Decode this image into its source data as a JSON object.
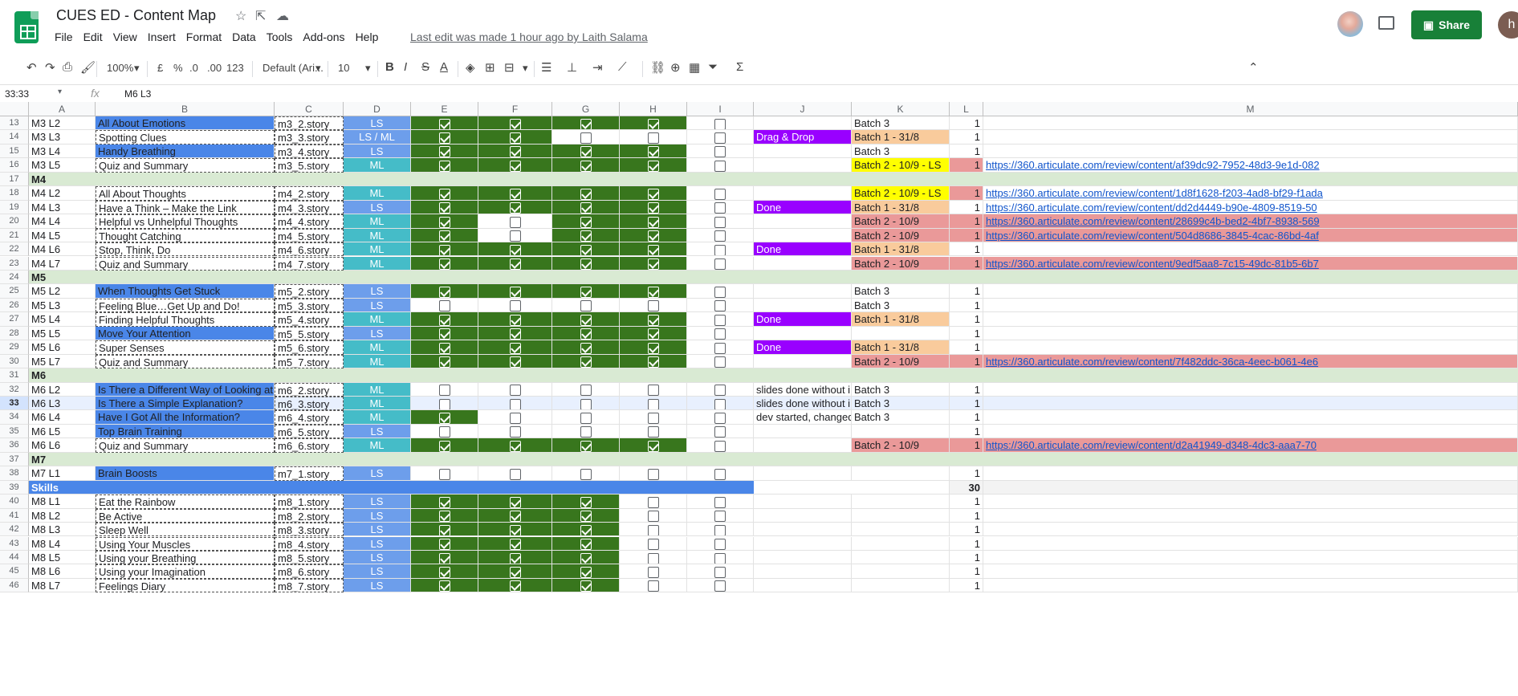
{
  "doc": {
    "title": "CUES ED - Content Map",
    "last_edit": "Last edit was made 1 hour ago by Laith Salama"
  },
  "menu": [
    "File",
    "Edit",
    "View",
    "Insert",
    "Format",
    "Data",
    "Tools",
    "Add-ons",
    "Help"
  ],
  "share_label": "Share",
  "user_initial": "h",
  "toolbar": {
    "zoom": "100%",
    "currency": "£",
    "percent": "%",
    "dec_less": ".0",
    "dec_more": ".00",
    "format": "123",
    "font": "Default (Ari...",
    "font_size": "10"
  },
  "formula": {
    "namebox": "33:33",
    "value": "M6 L3"
  },
  "columns": [
    "A",
    "B",
    "C",
    "D",
    "E",
    "F",
    "G",
    "H",
    "I",
    "J",
    "K",
    "L",
    "M"
  ],
  "colors": {
    "blue": "#4a86e8",
    "teal": "#45bcc8",
    "cornflower": "#6d9eeb",
    "green": "#38761d",
    "section": "#d9ead3",
    "purple": "#9900ff",
    "peach": "#f9cb9c",
    "yellow": "#ffff00",
    "red": "#ea9999",
    "white": "#ffffff",
    "header": "#f8f9fa"
  },
  "rows": [
    {
      "n": "13",
      "a": "M3 L2",
      "b": "All About Emotions",
      "c": "m3_2.story",
      "d": "LS",
      "k": "Batch 3",
      "l": "1"
    },
    {
      "n": "14",
      "a": "M3 L3",
      "b": "Spotting Clues",
      "c": "m3_3.story",
      "d": "LS / ML",
      "j": "Drag & Drop",
      "k": "Batch 1 - 31/8",
      "l": "1"
    },
    {
      "n": "15",
      "a": "M3 L4",
      "b": "Handy Breathing",
      "c": "m3_4.story",
      "d": "LS",
      "k": "Batch 3",
      "l": "1"
    },
    {
      "n": "16",
      "a": "M3 L5",
      "b": "Quiz and Summary",
      "c": "m3_5.story",
      "d": "ML",
      "k": "Batch 2 - 10/9 - LS",
      "l": "1",
      "m": "https://360.articulate.com/review/content/af39dc92-7952-48d3-9e1d-082"
    },
    {
      "n": "17",
      "a": "M4"
    },
    {
      "n": "18",
      "a": "M4 L2",
      "b": "All About Thoughts",
      "c": "m4_2.story",
      "d": "ML",
      "k": "Batch 2 - 10/9 - LS",
      "l": "1",
      "m": "https://360.articulate.com/review/content/1d8f1628-f203-4ad8-bf29-f1ada"
    },
    {
      "n": "19",
      "a": "M4 L3",
      "b": "Have a Think – Make the Link",
      "c": "m4_3.story",
      "d": "LS",
      "j": "Done",
      "k": "Batch 1 - 31/8",
      "l": "1",
      "m": "https://360.articulate.com/review/content/dd2d4449-b90e-4809-8519-50"
    },
    {
      "n": "20",
      "a": "M4 L4",
      "b": "Helpful vs Unhelpful Thoughts",
      "c": "m4_4.story",
      "d": "ML",
      "k": "Batch 2 - 10/9",
      "l": "1",
      "m": "https://360.articulate.com/review/content/28699c4b-bed2-4bf7-8938-569"
    },
    {
      "n": "21",
      "a": "M4 L5",
      "b": "Thought Catching",
      "c": "m4_5.story",
      "d": "ML",
      "k": "Batch 2 - 10/9",
      "l": "1",
      "m": "https://360.articulate.com/review/content/504d8686-3845-4cac-86bd-4af"
    },
    {
      "n": "22",
      "a": "M4 L6",
      "b": "Stop, Think, Do",
      "c": "m4_6.story",
      "d": "ML",
      "j": "Done",
      "k": "Batch 1 - 31/8",
      "l": "1"
    },
    {
      "n": "23",
      "a": "M4 L7",
      "b": "Quiz and Summary",
      "c": "m4_7.story",
      "d": "ML",
      "k": "Batch 2 - 10/9",
      "l": "1",
      "m": "https://360.articulate.com/review/content/9edf5aa8-7c15-49dc-81b5-6b7"
    },
    {
      "n": "24",
      "a": "M5"
    },
    {
      "n": "25",
      "a": "M5 L2",
      "b": "When Thoughts Get Stuck",
      "c": "m5_2.story",
      "d": "LS",
      "k": "Batch 3",
      "l": "1"
    },
    {
      "n": "26",
      "a": "M5 L3",
      "b": "Feeling Blue…Get Up and Do!",
      "c": "m5_3.story",
      "d": "LS",
      "k": "Batch 3",
      "l": "1"
    },
    {
      "n": "27",
      "a": "M5 L4",
      "b": "Finding Helpful Thoughts",
      "c": "m5_4.story",
      "d": "ML",
      "j": "Done",
      "k": "Batch 1 - 31/8",
      "l": "1"
    },
    {
      "n": "28",
      "a": "M5 L5",
      "b": "Move Your Attention",
      "c": "m5_5.story",
      "d": "LS",
      "l": "1"
    },
    {
      "n": "29",
      "a": "M5 L6",
      "b": "Super Senses",
      "c": "m5_6.story",
      "d": "ML",
      "j": "Done",
      "k": "Batch 1 - 31/8",
      "l": "1"
    },
    {
      "n": "30",
      "a": "M5 L7",
      "b": "Quiz and Summary",
      "c": "m5_7.story",
      "d": "ML",
      "k": "Batch 2 - 10/9",
      "l": "1",
      "m": "https://360.articulate.com/review/content/7f482ddc-36ca-4eec-b061-4e6"
    },
    {
      "n": "31",
      "a": "M6"
    },
    {
      "n": "32",
      "a": "M6 L2",
      "b": "Is There a Different Way of Looking at This?",
      "c": "m6_2.story",
      "d": "ML",
      "j": "slides done without intera",
      "k": "Batch 3",
      "l": "1"
    },
    {
      "n": "33",
      "a": "M6 L3",
      "b": "Is There a Simple Explanation?",
      "c": "m6_3.story",
      "d": "ML",
      "j": "slides done without intera",
      "k": "Batch 3",
      "l": "1"
    },
    {
      "n": "34",
      "a": "M6 L4",
      "b": "Have I Got All the Information?",
      "c": "m6_4.story",
      "d": "ML",
      "j": "dev started, changed to L",
      "k": "Batch 3",
      "l": "1"
    },
    {
      "n": "35",
      "a": "M6 L5",
      "b": "Top Brain Training",
      "c": "m6_5.story",
      "d": "LS",
      "l": "1"
    },
    {
      "n": "36",
      "a": "M6 L6",
      "b": "Quiz and Summary",
      "c": "m6_6.story",
      "d": "ML",
      "k": "Batch 2 - 10/9",
      "l": "1",
      "m": "https://360.articulate.com/review/content/d2a41949-d348-4dc3-aaa7-70"
    },
    {
      "n": "37",
      "a": "M7"
    },
    {
      "n": "38",
      "a": "M7 L1",
      "b": "Brain Boosts",
      "c": "m7_1.story",
      "d": "LS",
      "l": "1"
    },
    {
      "n": "39",
      "a": "Skills",
      "l": "30"
    },
    {
      "n": "40",
      "a": "M8 L1",
      "b": "Eat the Rainbow",
      "c": "m8_1.story",
      "d": "LS",
      "l": "1"
    },
    {
      "n": "41",
      "a": "M8 L2",
      "b": "Be Active",
      "c": "m8_2.story",
      "d": "LS",
      "l": "1"
    },
    {
      "n": "42",
      "a": "M8 L3",
      "b": "Sleep Well",
      "c": "m8_3.story",
      "d": "LS",
      "l": "1"
    },
    {
      "n": "43",
      "a": "M8 L4",
      "b": "Using Your Muscles",
      "c": "m8_4.story",
      "d": "LS",
      "l": "1"
    },
    {
      "n": "44",
      "a": "M8 L5",
      "b": "Using your Breathing",
      "c": "m8_5.story",
      "d": "LS",
      "l": "1"
    },
    {
      "n": "45",
      "a": "M8 L6",
      "b": "Using your Imagination",
      "c": "m8_6.story",
      "d": "LS",
      "l": "1"
    },
    {
      "n": "46",
      "a": "M8 L7",
      "b": "Feelings Diary",
      "c": "m8_7.story",
      "d": "LS",
      "l": "1"
    }
  ],
  "checks": {
    "13": [
      1,
      1,
      1,
      1,
      0
    ],
    "14": [
      1,
      1,
      0,
      0,
      0
    ],
    "15": [
      1,
      1,
      1,
      1,
      0
    ],
    "16": [
      1,
      1,
      1,
      1,
      0
    ],
    "18": [
      1,
      1,
      1,
      1,
      0
    ],
    "19": [
      1,
      1,
      1,
      1,
      0
    ],
    "20": [
      1,
      0,
      1,
      1,
      0
    ],
    "21": [
      1,
      0,
      1,
      1,
      0
    ],
    "22": [
      1,
      1,
      1,
      1,
      0
    ],
    "23": [
      1,
      1,
      1,
      1,
      0
    ],
    "25": [
      1,
      1,
      1,
      1,
      0
    ],
    "26": [
      0,
      0,
      0,
      0,
      0
    ],
    "27": [
      1,
      1,
      1,
      1,
      0
    ],
    "28": [
      1,
      1,
      1,
      1,
      0
    ],
    "29": [
      1,
      1,
      1,
      1,
      0
    ],
    "30": [
      1,
      1,
      1,
      1,
      0
    ],
    "32": [
      0,
      0,
      0,
      0,
      0
    ],
    "33": [
      0,
      0,
      0,
      0,
      0
    ],
    "34": [
      1,
      0,
      0,
      0,
      0
    ],
    "35": [
      0,
      0,
      0,
      0,
      0
    ],
    "36": [
      1,
      1,
      1,
      1,
      0
    ],
    "38": [
      0,
      0,
      0,
      0,
      0
    ],
    "40": [
      1,
      1,
      1,
      0,
      0
    ],
    "41": [
      1,
      1,
      1,
      0,
      0
    ],
    "42": [
      1,
      1,
      1,
      0,
      0
    ],
    "43": [
      1,
      1,
      1,
      0,
      0
    ],
    "44": [
      1,
      1,
      1,
      0,
      0
    ],
    "45": [
      1,
      1,
      1,
      0,
      0
    ],
    "46": [
      1,
      1,
      1,
      0,
      0
    ]
  }
}
